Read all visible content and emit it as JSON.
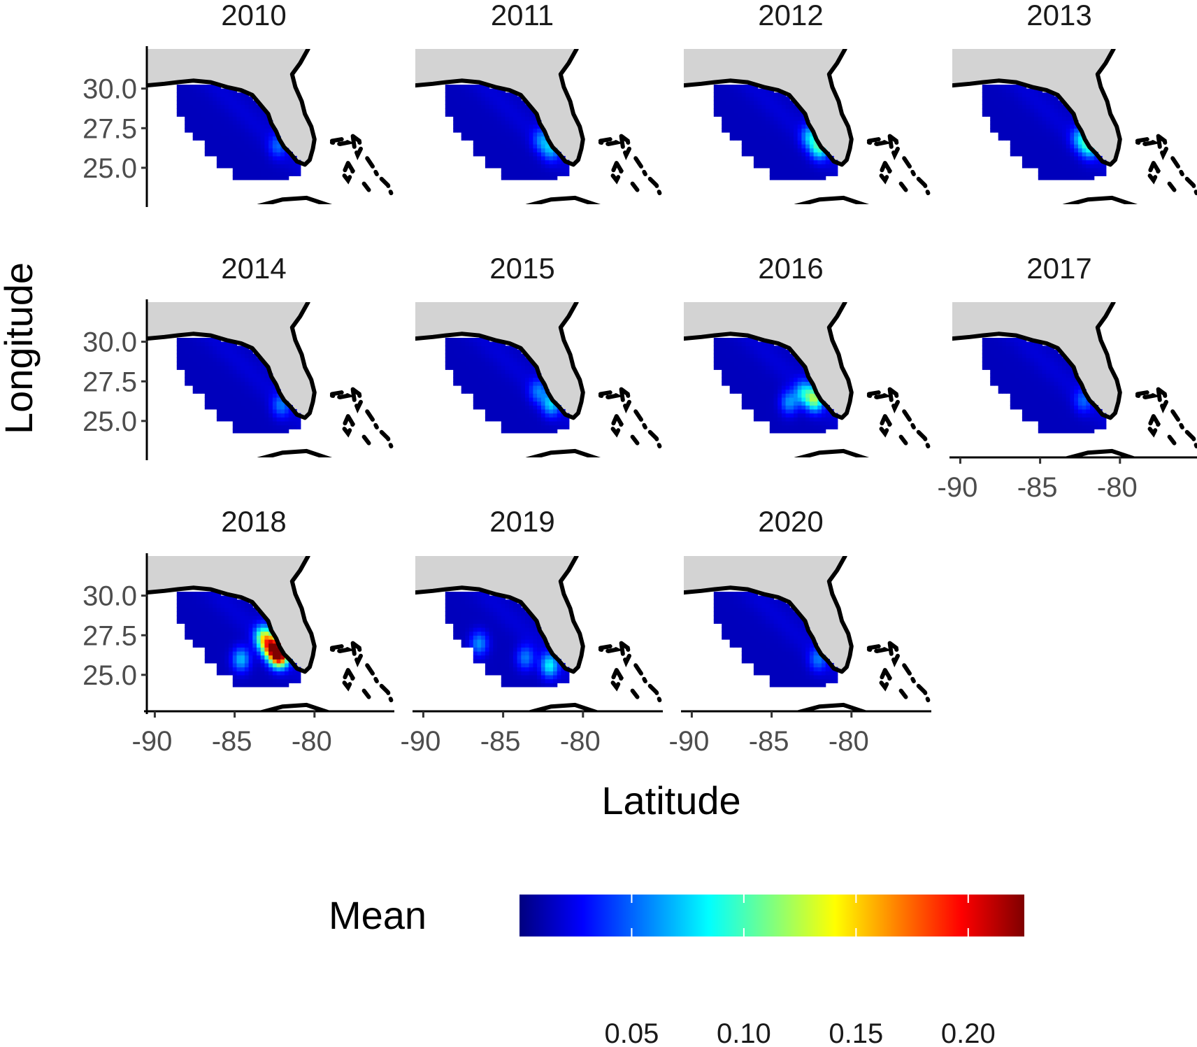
{
  "chart_data": {
    "type": "heatmap",
    "panels": [
      {
        "title": "2010",
        "hotspots": [
          {
            "lon": -82.3,
            "lat": 26.4,
            "value": 0.045
          }
        ]
      },
      {
        "title": "2011",
        "hotspots": [
          {
            "lon": -82.0,
            "lat": 26.2,
            "value": 0.06
          },
          {
            "lon": -82.6,
            "lat": 26.8,
            "value": 0.05
          }
        ]
      },
      {
        "title": "2012",
        "hotspots": [
          {
            "lon": -82.0,
            "lat": 26.3,
            "value": 0.09
          },
          {
            "lon": -82.6,
            "lat": 27.0,
            "value": 0.065
          }
        ]
      },
      {
        "title": "2013",
        "hotspots": [
          {
            "lon": -81.9,
            "lat": 26.4,
            "value": 0.085
          },
          {
            "lon": -82.5,
            "lat": 26.9,
            "value": 0.06
          }
        ]
      },
      {
        "title": "2014",
        "hotspots": [
          {
            "lon": -82.1,
            "lat": 26.0,
            "value": 0.05
          }
        ]
      },
      {
        "title": "2015",
        "hotspots": [
          {
            "lon": -82.0,
            "lat": 26.1,
            "value": 0.07
          },
          {
            "lon": -82.8,
            "lat": 26.9,
            "value": 0.05
          }
        ]
      },
      {
        "title": "2016",
        "hotspots": [
          {
            "lon": -82.3,
            "lat": 26.4,
            "value": 0.11
          },
          {
            "lon": -83.0,
            "lat": 26.8,
            "value": 0.07
          },
          {
            "lon": -83.9,
            "lat": 26.2,
            "value": 0.06
          }
        ]
      },
      {
        "title": "2017",
        "hotspots": [
          {
            "lon": -82.3,
            "lat": 26.3,
            "value": 0.045
          }
        ]
      },
      {
        "title": "2018",
        "hotspots": [
          {
            "lon": -82.2,
            "lat": 26.3,
            "value": 0.23
          },
          {
            "lon": -82.7,
            "lat": 26.8,
            "value": 0.16
          },
          {
            "lon": -83.2,
            "lat": 27.4,
            "value": 0.11
          },
          {
            "lon": -84.6,
            "lat": 26.0,
            "value": 0.07
          }
        ]
      },
      {
        "title": "2019",
        "hotspots": [
          {
            "lon": -82.1,
            "lat": 25.6,
            "value": 0.08
          },
          {
            "lon": -86.5,
            "lat": 27.0,
            "value": 0.06
          },
          {
            "lon": -83.6,
            "lat": 26.1,
            "value": 0.055
          }
        ]
      },
      {
        "title": "2020",
        "hotspots": [
          {
            "lon": -82.1,
            "lat": 26.0,
            "value": 0.05
          }
        ]
      }
    ],
    "x_axis": {
      "label": "Latitude",
      "ticks": [
        -90,
        -85,
        -80
      ],
      "tick_labels": [
        "-90",
        "-85",
        "-80"
      ],
      "range": [
        -90.5,
        -75
      ]
    },
    "y_axis": {
      "label": "Longitude",
      "ticks": [
        30.0,
        27.5,
        25.0
      ],
      "tick_labels": [
        "30.0",
        "27.5",
        "25.0"
      ],
      "range": [
        22.7,
        32.5
      ]
    },
    "legend": {
      "title": "Mean",
      "type": "colorbar",
      "range": [
        0,
        0.225
      ],
      "ticks": [
        0.05,
        0.1,
        0.15,
        0.2
      ],
      "tick_labels": [
        "0.05",
        "0.10",
        "0.15",
        "0.20"
      ],
      "placement": "bottom",
      "colors": [
        "#00007f",
        "#0000ff",
        "#007fff",
        "#00ffff",
        "#7fff7f",
        "#ffff00",
        "#ff7f00",
        "#ff0000",
        "#7f0000"
      ]
    },
    "grid": false,
    "land_color": "#d3d3d3",
    "coast_color": "#000000"
  }
}
